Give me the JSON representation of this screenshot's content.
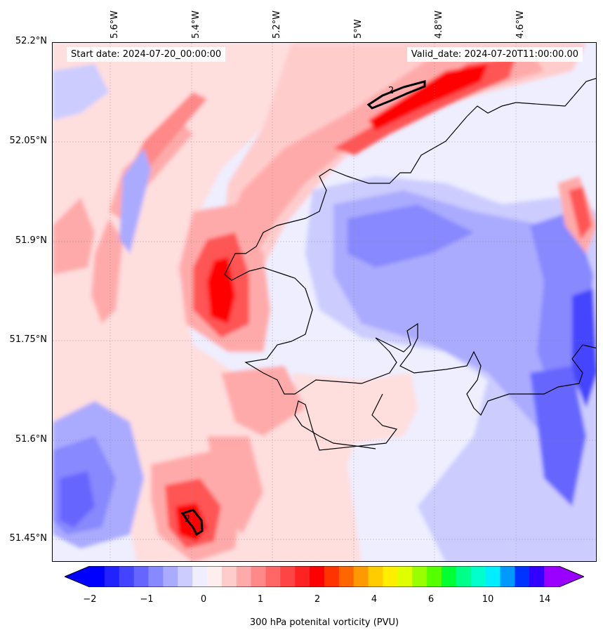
{
  "map": {
    "start_date": "Start date: 2024-07-20_00:00:00",
    "valid_date": "Valid_date: 2024-07-20T11:00:00.00",
    "lon_labels": [
      "5.6°W",
      "5.4°W",
      "5.2°W",
      "5°W",
      "4.8°W",
      "4.6°W"
    ],
    "lat_labels": [
      "52.2°N",
      "52.05°N",
      "51.9°N",
      "51.75°N",
      "51.6°N",
      "51.45°N"
    ],
    "contour_labels": [
      "2",
      "2"
    ],
    "colors": {
      "strong_red": "#ff0000",
      "red": "#ff5555",
      "light_red": "#ffaaaa",
      "pale_red": "#ffdede",
      "pale_blue": "#dcdcff",
      "light_blue": "#aaaaff",
      "blue": "#7777ff",
      "strong_blue": "#3333ff",
      "coastline": "#000000"
    }
  },
  "colorbar": {
    "label": "300 hPa potenital vorticity (PVU)",
    "ticks": [
      "−2",
      "−1",
      "0",
      "1",
      "2",
      "4",
      "6",
      "10",
      "14"
    ],
    "colors": [
      "#0000ff",
      "#2222ff",
      "#4444ff",
      "#6666ff",
      "#8888ff",
      "#aaaaff",
      "#ccccff",
      "#eeeeff",
      "#ffeeee",
      "#ffcccc",
      "#ffaaaa",
      "#ff8888",
      "#ff6666",
      "#ff4444",
      "#ff2222",
      "#ff0000",
      "#ff3300",
      "#ff6600",
      "#ff9900",
      "#ffcc00",
      "#ffee00",
      "#ddff00",
      "#99ff00",
      "#55ff00",
      "#00ff33",
      "#00ff88",
      "#00ffcc",
      "#00eeff",
      "#0099ff",
      "#0033ff",
      "#3300ff",
      "#9900ff"
    ]
  }
}
